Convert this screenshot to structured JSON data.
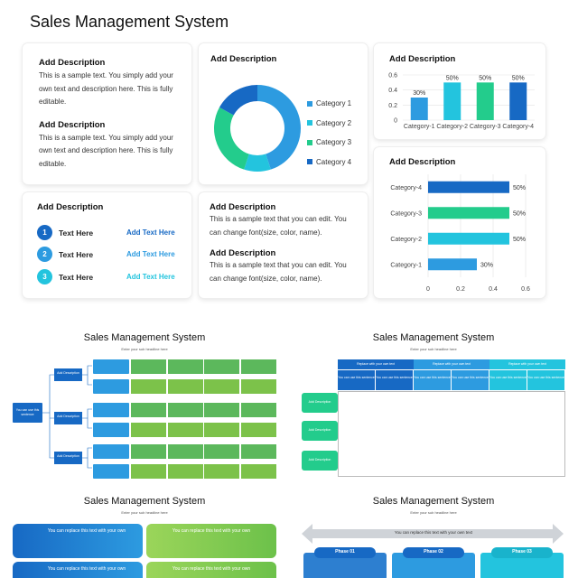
{
  "page_title": "Sales Management System",
  "card_text_blocks": {
    "title": "Add Description",
    "body": "This is a sample text. You simply add your own text and description here. This is fully editable."
  },
  "donut": {
    "title": "Add Description",
    "colors": [
      "#2d9be0",
      "#23c4de",
      "#23cc8c",
      "#1769c4"
    ],
    "legend": [
      "Category 1",
      "Category 2",
      "Category 3",
      "Category 4"
    ],
    "values": [
      45,
      10,
      28,
      17
    ]
  },
  "bar_chart": {
    "title": "Add Description",
    "chart_data": {
      "type": "bar",
      "categories": [
        "Category-1",
        "Category-2",
        "Category-3",
        "Category-4"
      ],
      "values": [
        0.3,
        0.5,
        0.5,
        0.5
      ],
      "data_labels": [
        "30%",
        "50%",
        "50%",
        "50%"
      ],
      "colors": [
        "#2d9be0",
        "#23c4de",
        "#23cc8c",
        "#1769c4"
      ],
      "ylim": [
        0,
        0.6
      ],
      "yticks": [
        "0",
        "0.2",
        "0.4",
        "0.6"
      ],
      "grid": true
    }
  },
  "steps": {
    "title": "Add Description",
    "items": [
      {
        "num": "1",
        "label": "Text Here",
        "link": "Add Text Here",
        "color": "#1769c4",
        "link_color": "#1769c4"
      },
      {
        "num": "2",
        "label": "Text Here",
        "link": "Add Text Here",
        "color": "#2d9be0",
        "link_color": "#2d9be0"
      },
      {
        "num": "3",
        "label": "Text Here",
        "link": "Add Text Here",
        "color": "#23c4de",
        "link_color": "#23c4de"
      }
    ]
  },
  "text_card": {
    "title": "Add Description",
    "body": "This is a sample text that you can edit. You can change font(size, color, name)."
  },
  "hbar_chart": {
    "title": "Add Description",
    "chart_data": {
      "type": "bar",
      "orientation": "horizontal",
      "categories": [
        "Category-4",
        "Category-3",
        "Category-2",
        "Category-1"
      ],
      "values": [
        0.5,
        0.5,
        0.5,
        0.3
      ],
      "data_labels": [
        "50%",
        "50%",
        "50%",
        "30%"
      ],
      "colors": [
        "#1769c4",
        "#23cc8c",
        "#23c4de",
        "#2d9be0"
      ],
      "xlim": [
        0,
        0.6
      ],
      "xticks": [
        "0",
        "0.2",
        "0.4",
        "0.6"
      ],
      "grid": true
    }
  },
  "thumbnails": {
    "title": "Sales Management System",
    "subtitle": "Enter your sub headline here",
    "tree_root": "You can use this sentence",
    "tree_node": "Add Description",
    "table_header": "Replace with your own text",
    "table_cell": "You can use this sentence",
    "row_label": "Add Description",
    "card_heading": "You can replace this text with your own",
    "arrow_text": "You can replace this text with your own text",
    "phases": [
      "Phase 01",
      "Phase 02",
      "Phase 03"
    ]
  }
}
